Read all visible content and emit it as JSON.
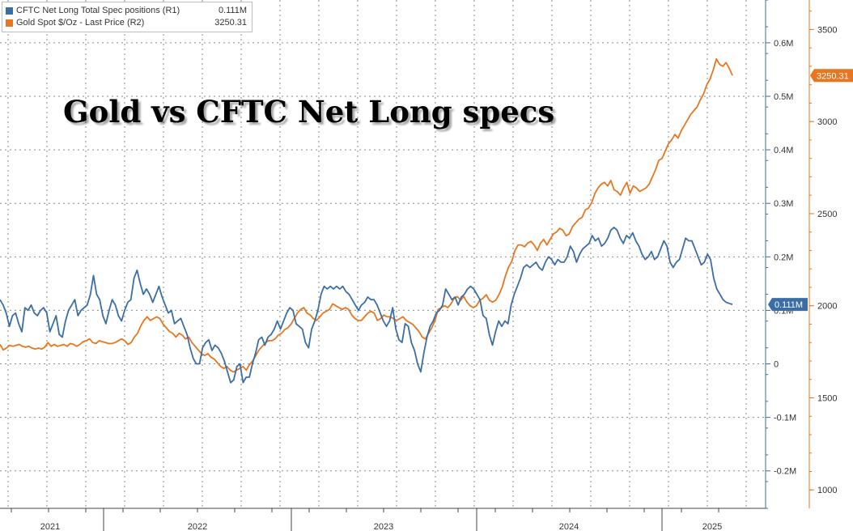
{
  "title": "Gold vs CFTC Net Long specs",
  "legend": [
    {
      "label": "CFTC Net Long Total Spec positions (R1)",
      "value": "0.111M",
      "color": "#3a6ea5"
    },
    {
      "label": "Gold Spot $/Oz - Last Price (R2)",
      "value": "3250.31",
      "color": "#e8761f"
    }
  ],
  "chart_data": {
    "type": "line",
    "title": "Gold vs CFTC Net Long specs",
    "x_labels": [
      "2021",
      "2022",
      "2023",
      "2024",
      "2025"
    ],
    "series": [
      {
        "name": "CFTC Net Long Total Spec positions (R1)",
        "axis": "R1",
        "color": "#3a6ea5",
        "last_value_label": "0.111M",
        "values": [
          0.12,
          0.11,
          0.095,
          0.07,
          0.09,
          0.095,
          0.075,
          0.06,
          0.105,
          0.1,
          0.11,
          0.095,
          0.09,
          0.1,
          0.105,
          0.095,
          0.06,
          0.075,
          0.09,
          0.055,
          0.05,
          0.08,
          0.1,
          0.11,
          0.12,
          0.09,
          0.1,
          0.105,
          0.11,
          0.13,
          0.165,
          0.13,
          0.12,
          0.09,
          0.075,
          0.1,
          0.12,
          0.11,
          0.09,
          0.08,
          0.1,
          0.115,
          0.12,
          0.16,
          0.175,
          0.15,
          0.13,
          0.14,
          0.13,
          0.115,
          0.13,
          0.145,
          0.125,
          0.11,
          0.095,
          0.1,
          0.075,
          0.08,
          0.085,
          0.07,
          0.055,
          0.03,
          0.01,
          0.0,
          0.0,
          0.03,
          0.04,
          0.045,
          0.025,
          0.035,
          0.03,
          0.02,
          0.005,
          -0.015,
          -0.035,
          -0.03,
          -0.005,
          0.0,
          -0.035,
          -0.025,
          -0.025,
          0.0,
          0.02,
          0.045,
          0.05,
          0.035,
          0.05,
          0.055,
          0.065,
          0.08,
          0.065,
          0.08,
          0.095,
          0.105,
          0.1,
          0.075,
          0.07,
          0.065,
          0.04,
          0.03,
          0.065,
          0.08,
          0.1,
          0.13,
          0.145,
          0.14,
          0.145,
          0.14,
          0.145,
          0.14,
          0.145,
          0.135,
          0.13,
          0.12,
          0.11,
          0.1,
          0.11,
          0.115,
          0.125,
          0.12,
          0.12,
          0.11,
          0.095,
          0.08,
          0.07,
          0.08,
          0.105,
          0.065,
          0.045,
          0.04,
          0.075,
          0.07,
          0.04,
          0.025,
          0.0,
          -0.015,
          0.02,
          0.05,
          0.07,
          0.08,
          0.095,
          0.1,
          0.11,
          0.14,
          0.13,
          0.12,
          0.125,
          0.11,
          0.125,
          0.13,
          0.14,
          0.145,
          0.14,
          0.13,
          0.12,
          0.09,
          0.085,
          0.055,
          0.035,
          0.06,
          0.08,
          0.07,
          0.08,
          0.075,
          0.11,
          0.13,
          0.145,
          0.16,
          0.18,
          0.185,
          0.18,
          0.185,
          0.19,
          0.18,
          0.175,
          0.19,
          0.2,
          0.195,
          0.185,
          0.195,
          0.19,
          0.19,
          0.2,
          0.22,
          0.21,
          0.19,
          0.205,
          0.215,
          0.22,
          0.225,
          0.24,
          0.23,
          0.235,
          0.22,
          0.225,
          0.235,
          0.25,
          0.255,
          0.25,
          0.235,
          0.225,
          0.24,
          0.235,
          0.245,
          0.23,
          0.22,
          0.205,
          0.195,
          0.2,
          0.21,
          0.195,
          0.2,
          0.215,
          0.23,
          0.22,
          0.19,
          0.18,
          0.19,
          0.195,
          0.215,
          0.235,
          0.23,
          0.23,
          0.215,
          0.2,
          0.185,
          0.19,
          0.205,
          0.195,
          0.16,
          0.14,
          0.13,
          0.12,
          0.115,
          0.113,
          0.111
        ]
      },
      {
        "name": "Gold Spot $/Oz - Last Price (R2)",
        "axis": "R2",
        "color": "#e8761f",
        "last_value_label": "3250.31",
        "values": [
          1790,
          1760,
          1770,
          1785,
          1780,
          1785,
          1790,
          1780,
          1775,
          1780,
          1770,
          1765,
          1770,
          1765,
          1775,
          1800,
          1780,
          1790,
          1780,
          1785,
          1790,
          1780,
          1795,
          1790,
          1780,
          1790,
          1805,
          1810,
          1820,
          1800,
          1795,
          1810,
          1805,
          1800,
          1795,
          1795,
          1800,
          1810,
          1820,
          1810,
          1790,
          1800,
          1830,
          1850,
          1890,
          1920,
          1940,
          1920,
          1930,
          1940,
          1930,
          1900,
          1880,
          1860,
          1850,
          1830,
          1850,
          1840,
          1820,
          1830,
          1800,
          1780,
          1760,
          1740,
          1730,
          1740,
          1720,
          1710,
          1690,
          1670,
          1660,
          1670,
          1650,
          1640,
          1650,
          1660,
          1670,
          1650,
          1680,
          1700,
          1730,
          1760,
          1780,
          1800,
          1810,
          1810,
          1820,
          1840,
          1850,
          1870,
          1880,
          1900,
          1930,
          1960,
          1980,
          1990,
          1960,
          1950,
          1930,
          1920,
          1940,
          1960,
          1970,
          1980,
          2010,
          2000,
          1990,
          1980,
          1990,
          1980,
          1950,
          1930,
          1920,
          1920,
          1940,
          1960,
          1970,
          1960,
          1920,
          1930,
          1950,
          1940,
          1940,
          1930,
          1920,
          1930,
          1940,
          1920,
          1910,
          1900,
          1880,
          1860,
          1830,
          1820,
          1850,
          1880,
          1920,
          1980,
          1990,
          2000,
          1990,
          2010,
          2040,
          2050,
          2030,
          2050,
          2020,
          2000,
          1990,
          2000,
          2030,
          2040,
          2060,
          2030,
          2020,
          2030,
          2060,
          2100,
          2160,
          2210,
          2240,
          2300,
          2330,
          2330,
          2320,
          2340,
          2350,
          2330,
          2300,
          2340,
          2360,
          2330,
          2360,
          2390,
          2400,
          2420,
          2410,
          2380,
          2390,
          2430,
          2450,
          2470,
          2480,
          2520,
          2530,
          2560,
          2610,
          2640,
          2660,
          2670,
          2650,
          2680,
          2630,
          2620,
          2600,
          2640,
          2670,
          2610,
          2650,
          2640,
          2620,
          2630,
          2640,
          2660,
          2700,
          2740,
          2790,
          2800,
          2840,
          2880,
          2900,
          2930,
          2910,
          2950,
          2980,
          3010,
          3040,
          3060,
          3080,
          3120,
          3150,
          3200,
          3230,
          3280,
          3340,
          3310,
          3300,
          3320,
          3290,
          3250
        ]
      }
    ],
    "axes": {
      "R1": {
        "ticks": [
          "-0.2M",
          "-0.1M",
          "0",
          "0.1M",
          "0.2M",
          "0.3M",
          "0.4M",
          "0.5M",
          "0.6M"
        ],
        "min": -0.27,
        "max": 0.68
      },
      "R2": {
        "ticks": [
          "1000",
          "1500",
          "2000",
          "2500",
          "3000",
          "3500"
        ],
        "min": 900,
        "max": 3660
      }
    },
    "grid": true,
    "legend_position": "top-left"
  }
}
